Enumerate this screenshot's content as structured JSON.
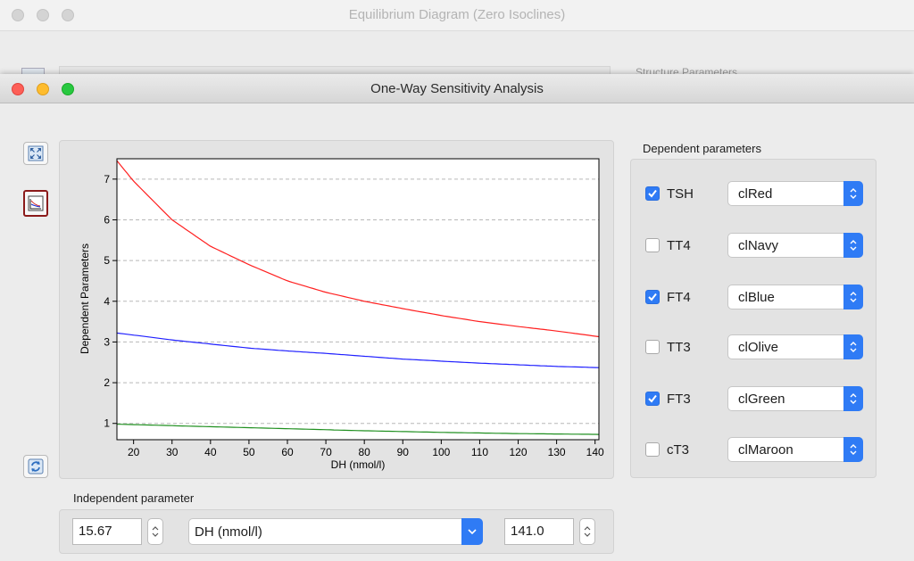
{
  "background_window": {
    "title": "Equilibrium Diagram (Zero Isoclines)",
    "side_label": "Structure Parameters"
  },
  "window": {
    "title": "One-Way Sensitivity Analysis"
  },
  "toolbar": [
    {
      "icon": "fullscreen-icon"
    },
    {
      "icon": "chart-icon"
    },
    {
      "icon": "refresh-icon"
    }
  ],
  "dependent": {
    "title": "Dependent parameters",
    "params": [
      {
        "label": "TSH",
        "checked": true,
        "color_name": "clRed"
      },
      {
        "label": "TT4",
        "checked": false,
        "color_name": "clNavy"
      },
      {
        "label": "FT4",
        "checked": true,
        "color_name": "clBlue"
      },
      {
        "label": "TT3",
        "checked": false,
        "color_name": "clOlive"
      },
      {
        "label": "FT3",
        "checked": true,
        "color_name": "clGreen"
      },
      {
        "label": "cT3",
        "checked": false,
        "color_name": "clMaroon"
      }
    ]
  },
  "independent": {
    "title": "Independent parameter",
    "min": "15.67",
    "parameter": "DH (nmol/l)",
    "max": "141.0"
  },
  "chart_data": {
    "type": "line",
    "xlabel": "DH (nmol/l)",
    "ylabel": "Dependent Parameters",
    "xlim": [
      15.67,
      141.0
    ],
    "ylim": [
      0.6,
      7.5
    ],
    "xticks": [
      20,
      30,
      40,
      50,
      60,
      70,
      80,
      90,
      100,
      110,
      120,
      130,
      140
    ],
    "yticks": [
      1,
      2,
      3,
      4,
      5,
      6,
      7
    ],
    "grid": "horizontal dashed",
    "series": [
      {
        "color": "#ff2020",
        "x": [
          15.67,
          20,
          30,
          40,
          50,
          60,
          70,
          80,
          90,
          100,
          110,
          120,
          130,
          141
        ],
        "y": [
          7.45,
          6.95,
          6.0,
          5.35,
          4.9,
          4.5,
          4.22,
          4.0,
          3.82,
          3.65,
          3.5,
          3.38,
          3.27,
          3.13
        ]
      },
      {
        "color": "#2020ff",
        "x": [
          15.67,
          20,
          30,
          40,
          50,
          60,
          70,
          80,
          90,
          100,
          110,
          120,
          130,
          141
        ],
        "y": [
          3.22,
          3.17,
          3.05,
          2.95,
          2.85,
          2.78,
          2.72,
          2.65,
          2.58,
          2.53,
          2.48,
          2.44,
          2.4,
          2.37
        ]
      },
      {
        "color": "#209020",
        "x": [
          15.67,
          20,
          40,
          60,
          80,
          100,
          120,
          141
        ],
        "y": [
          0.98,
          0.97,
          0.92,
          0.87,
          0.82,
          0.78,
          0.75,
          0.73
        ]
      }
    ]
  }
}
